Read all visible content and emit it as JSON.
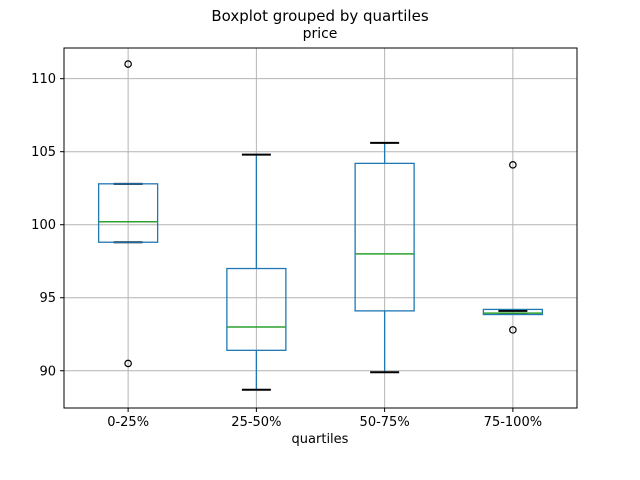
{
  "chart_data": {
    "type": "boxplot",
    "title": "Boxplot grouped by quartiles",
    "subtitle": "price",
    "xlabel": "quartiles",
    "ylabel": "",
    "categories": [
      "0-25%",
      "25-50%",
      "50-75%",
      "75-100%"
    ],
    "yticks": [
      90,
      95,
      100,
      105,
      110
    ],
    "ylim": [
      87.45,
      112.1
    ],
    "grid": true,
    "legend": false,
    "series": [
      {
        "category": "0-25%",
        "whisker_low": 98.8,
        "q1": 98.8,
        "median": 100.2,
        "q3": 102.8,
        "whisker_high": 102.8,
        "outliers": [
          111.0,
          90.5
        ]
      },
      {
        "category": "25-50%",
        "whisker_low": 88.7,
        "q1": 91.4,
        "median": 93.0,
        "q3": 97.0,
        "whisker_high": 104.8,
        "outliers": []
      },
      {
        "category": "50-75%",
        "whisker_low": 89.9,
        "q1": 94.1,
        "median": 98.0,
        "q3": 104.2,
        "whisker_high": 105.6,
        "outliers": []
      },
      {
        "category": "75-100%",
        "whisker_low": 93.9,
        "q1": 93.85,
        "median": 93.95,
        "q3": 94.2,
        "whisker_high": 94.1,
        "outliers": [
          104.1,
          92.8
        ]
      }
    ],
    "colors": {
      "box": "#1f77b4",
      "whisker": "#1f77b4",
      "median": "#2ca02c",
      "cap": "#000000",
      "flier": "#000000",
      "grid": "#b4b4b4",
      "axes": "#000000",
      "background": "#ffffff"
    }
  }
}
